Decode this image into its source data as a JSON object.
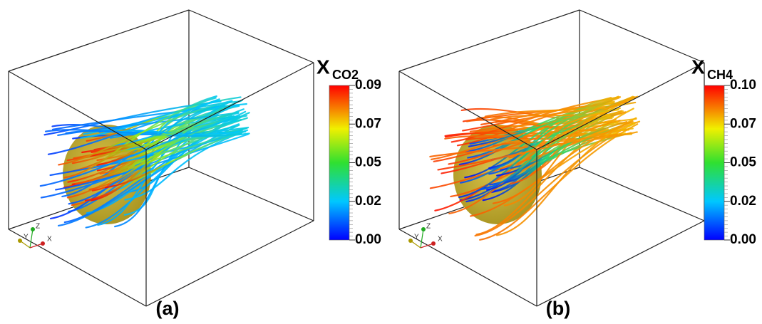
{
  "panels": [
    {
      "label": "(a)",
      "colorbar": {
        "title": "X",
        "subscript": "CO2",
        "ticks": [
          "0.09",
          "0.07",
          "0.05",
          "0.02",
          "0.00"
        ]
      },
      "triad": [
        "Y",
        "Z",
        "X"
      ]
    },
    {
      "label": "(b)",
      "colorbar": {
        "title": "X",
        "subscript": "CH4",
        "ticks": [
          "0.10",
          "0.07",
          "0.05",
          "0.02",
          "0.00"
        ]
      },
      "triad": [
        "Y",
        "Z",
        "X"
      ]
    }
  ]
}
